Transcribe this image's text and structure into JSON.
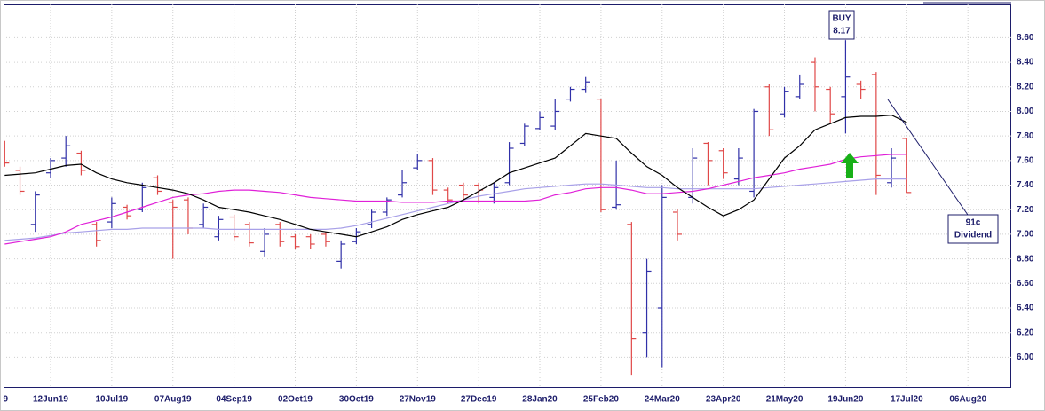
{
  "chart_data": {
    "type": "ohlc",
    "categories": [
      "9",
      null,
      null,
      null,
      "12Jun19",
      null,
      null,
      null,
      "10Jul19",
      null,
      null,
      null,
      "07Aug19",
      null,
      null,
      null,
      "04Sep19",
      null,
      null,
      null,
      "02Oct19",
      null,
      null,
      null,
      "30Oct19",
      null,
      null,
      null,
      "27Nov19",
      null,
      null,
      null,
      "27Dec19",
      null,
      null,
      null,
      "28Jan20",
      null,
      null,
      null,
      "25Feb20",
      null,
      null,
      null,
      "24Mar20",
      null,
      null,
      null,
      "23Apr20",
      null,
      null,
      null,
      "21May20",
      null,
      null,
      null,
      "19Jun20",
      null,
      null,
      null,
      "17Jul20",
      null,
      null,
      null,
      "06Aug20"
    ],
    "open": [
      null,
      7.75,
      7.52,
      7.08,
      7.5,
      7.62,
      7.66,
      7.08,
      7.1,
      7.22,
      7.2,
      7.46,
      7.26,
      7.28,
      7.08,
      6.98,
      7.14,
      7.08,
      6.86,
      7.08,
      6.98,
      6.98,
      7.0,
      6.78,
      6.94,
      7.08,
      7.18,
      7.32,
      7.54,
      7.6,
      7.36,
      7.4,
      7.4,
      7.3,
      7.42,
      7.74,
      7.86,
      7.88,
      8.1,
      8.18,
      8.1,
      7.22,
      7.08,
      6.2,
      6.4,
      7.18,
      7.3,
      7.74,
      7.68,
      7.45,
      7.35,
      8.2,
      7.98,
      8.12,
      8.4,
      8.18,
      8.12,
      8.22,
      8.3,
      7.42,
      7.78,
      null,
      null,
      null,
      null
    ],
    "high": [
      null,
      7.76,
      7.55,
      7.35,
      7.62,
      7.8,
      7.68,
      7.1,
      7.3,
      7.24,
      7.42,
      7.48,
      7.28,
      7.3,
      7.25,
      7.15,
      7.16,
      7.1,
      7.05,
      7.1,
      7.0,
      7.0,
      7.02,
      6.95,
      7.05,
      7.2,
      7.3,
      7.52,
      7.65,
      7.62,
      7.38,
      7.42,
      7.42,
      7.42,
      7.75,
      7.9,
      8.0,
      8.1,
      8.2,
      8.28,
      8.1,
      7.6,
      7.1,
      6.8,
      7.4,
      7.2,
      7.7,
      7.75,
      7.7,
      7.7,
      8.02,
      8.22,
      8.2,
      8.3,
      8.44,
      8.2,
      8.58,
      8.25,
      8.32,
      7.7,
      7.78,
      null,
      null,
      null,
      null
    ],
    "low": [
      null,
      7.55,
      7.32,
      7.02,
      7.46,
      7.55,
      7.48,
      6.9,
      7.05,
      7.12,
      7.18,
      7.32,
      6.8,
      7.0,
      7.05,
      6.95,
      6.95,
      6.9,
      6.82,
      6.9,
      6.88,
      6.88,
      6.9,
      6.72,
      6.92,
      7.05,
      7.15,
      7.3,
      7.52,
      7.32,
      7.25,
      7.28,
      7.25,
      7.25,
      7.4,
      7.72,
      7.85,
      7.85,
      8.08,
      8.15,
      7.18,
      7.2,
      5.85,
      6.0,
      5.92,
      6.95,
      7.25,
      7.4,
      7.45,
      7.4,
      7.3,
      7.8,
      7.95,
      8.1,
      8.0,
      7.9,
      7.82,
      8.1,
      7.32,
      7.38,
      7.34,
      null,
      null,
      null,
      null
    ],
    "close": [
      null,
      7.58,
      7.35,
      7.32,
      7.6,
      7.72,
      7.52,
      6.95,
      7.25,
      7.15,
      7.38,
      7.35,
      7.22,
      7.05,
      7.22,
      7.12,
      6.98,
      6.93,
      7.0,
      6.94,
      6.9,
      6.92,
      6.94,
      6.92,
      7.02,
      7.18,
      7.28,
      7.42,
      7.6,
      7.36,
      7.28,
      7.32,
      7.36,
      7.38,
      7.7,
      7.88,
      7.95,
      8.0,
      8.18,
      8.24,
      7.2,
      7.24,
      6.15,
      6.7,
      7.3,
      7.0,
      7.62,
      7.6,
      7.5,
      7.62,
      8.0,
      7.85,
      8.16,
      8.22,
      8.2,
      7.98,
      8.28,
      8.18,
      7.48,
      7.62,
      7.34,
      null,
      null,
      null,
      null
    ],
    "up_color": "#3030a8",
    "down_color": "#e04848",
    "series": [
      {
        "color": "#000000",
        "values": [
          null,
          7.48,
          7.49,
          7.5,
          7.53,
          7.56,
          7.57,
          7.5,
          7.45,
          7.42,
          7.4,
          7.38,
          7.36,
          7.33,
          7.28,
          7.22,
          7.2,
          7.18,
          7.15,
          7.12,
          7.08,
          7.04,
          7.02,
          7.0,
          6.98,
          7.02,
          7.06,
          7.12,
          7.16,
          7.19,
          7.22,
          7.28,
          7.35,
          7.42,
          7.5,
          7.54,
          7.58,
          7.62,
          7.72,
          7.82,
          7.8,
          7.78,
          7.66,
          7.55,
          7.48,
          7.38,
          7.3,
          7.22,
          7.15,
          7.2,
          7.28,
          7.45,
          7.62,
          7.72,
          7.85,
          7.9,
          7.95,
          7.96,
          7.96,
          7.97,
          7.91,
          null,
          null,
          null,
          null
        ]
      },
      {
        "color": "#e020d8",
        "values": [
          null,
          6.92,
          6.94,
          6.96,
          6.98,
          7.02,
          7.08,
          7.11,
          7.14,
          7.18,
          7.22,
          7.26,
          7.3,
          7.32,
          7.33,
          7.35,
          7.36,
          7.36,
          7.35,
          7.34,
          7.32,
          7.3,
          7.29,
          7.28,
          7.27,
          7.27,
          7.27,
          7.26,
          7.26,
          7.26,
          7.27,
          7.27,
          7.27,
          7.27,
          7.27,
          7.27,
          7.28,
          7.32,
          7.34,
          7.37,
          7.38,
          7.38,
          7.36,
          7.33,
          7.33,
          7.34,
          7.35,
          7.37,
          7.4,
          7.43,
          7.46,
          7.48,
          7.5,
          7.53,
          7.55,
          7.57,
          7.61,
          7.63,
          7.64,
          7.65,
          7.65,
          null,
          null,
          null,
          null
        ]
      },
      {
        "color": "#a8a0e8",
        "values": [
          null,
          6.95,
          6.96,
          6.97,
          6.99,
          7.01,
          7.02,
          7.03,
          7.04,
          7.04,
          7.05,
          7.05,
          7.05,
          7.05,
          7.05,
          7.04,
          7.04,
          7.04,
          7.04,
          7.04,
          7.04,
          7.04,
          7.04,
          7.05,
          7.07,
          7.1,
          7.13,
          7.16,
          7.19,
          7.22,
          7.25,
          7.28,
          7.31,
          7.33,
          7.35,
          7.37,
          7.38,
          7.39,
          7.4,
          7.41,
          7.41,
          7.4,
          7.39,
          7.38,
          7.38,
          7.37,
          7.37,
          7.37,
          7.37,
          7.37,
          7.37,
          7.38,
          7.39,
          7.4,
          7.41,
          7.42,
          7.43,
          7.44,
          7.45,
          7.45,
          7.45,
          null,
          null,
          null,
          null
        ]
      }
    ],
    "ylim": [
      5.75,
      8.87
    ],
    "yticks": [
      {
        "value": 6,
        "label": "6.00"
      },
      {
        "value": 6.2,
        "label": "6.20"
      },
      {
        "value": 6.4,
        "label": "6.40"
      },
      {
        "value": 6.6,
        "label": "6.60"
      },
      {
        "value": 6.8,
        "label": "6.80"
      },
      {
        "value": 7,
        "label": "7.00"
      },
      {
        "value": 7.2,
        "label": "7.20"
      },
      {
        "value": 7.4,
        "label": "7.40"
      },
      {
        "value": 7.6,
        "label": "7.60"
      },
      {
        "value": 7.8,
        "label": "7.80"
      },
      {
        "value": 8,
        "label": "8.00"
      },
      {
        "value": 8.2,
        "label": "8.20"
      },
      {
        "value": 8.4,
        "label": "8.40"
      },
      {
        "value": 8.6,
        "label": "8.60"
      }
    ],
    "grid": true,
    "annotations": [
      {
        "lines": [
          "BUY",
          "8.17"
        ]
      },
      {
        "lines": [
          "91c",
          "Dividend"
        ]
      }
    ]
  }
}
